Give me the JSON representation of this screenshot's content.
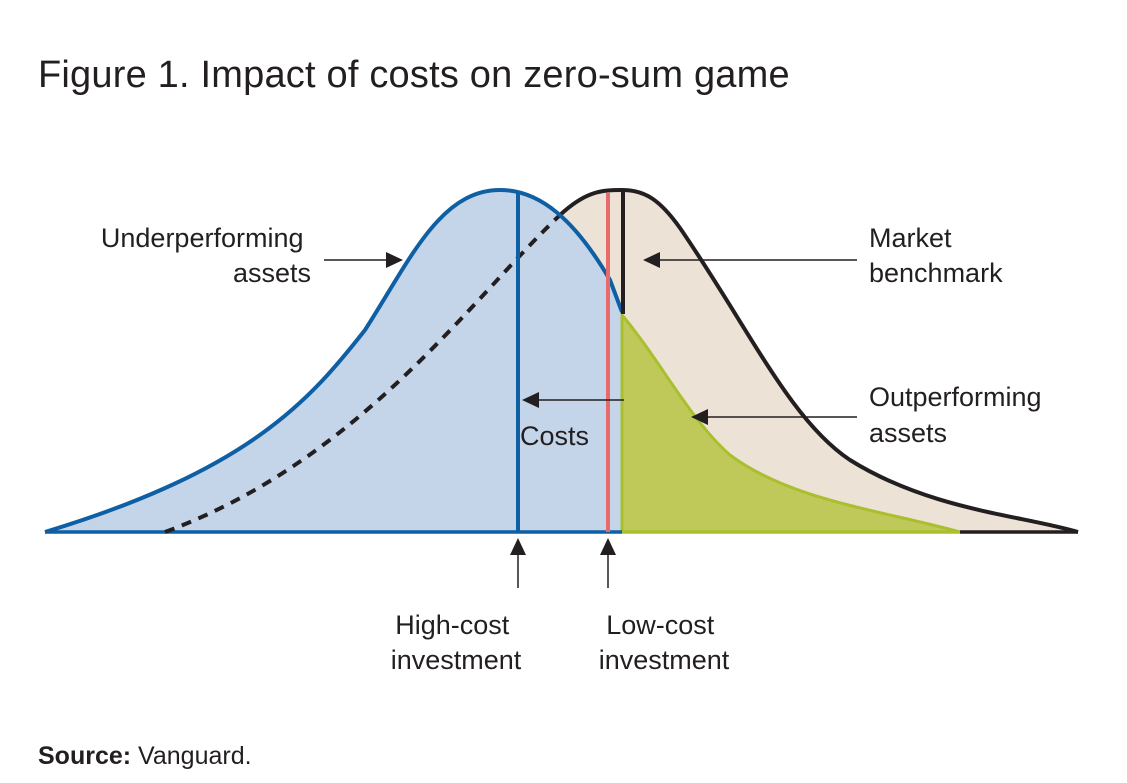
{
  "figure": {
    "title": "Figure 1. Impact of costs on zero-sum game"
  },
  "labels": {
    "underperforming": [
      "Underperforming",
      "assets"
    ],
    "market_benchmark": [
      "Market",
      "benchmark"
    ],
    "outperforming": [
      "Outperforming",
      "assets"
    ],
    "costs": "Costs",
    "high_cost": [
      "High-cost",
      "investment"
    ],
    "low_cost": [
      "Low-cost",
      "investment"
    ]
  },
  "source": {
    "label": "Source:",
    "text": "Vanguard."
  },
  "colors": {
    "blue_curve": "#0e5fa3",
    "blue_fill": "#c4d5ea",
    "beige_fill": "#ede2d6",
    "black_curve": "#231f20",
    "green_fill": "#bfc95a",
    "green_edge": "#a9bf2e",
    "red_line": "#e86a6a"
  }
}
